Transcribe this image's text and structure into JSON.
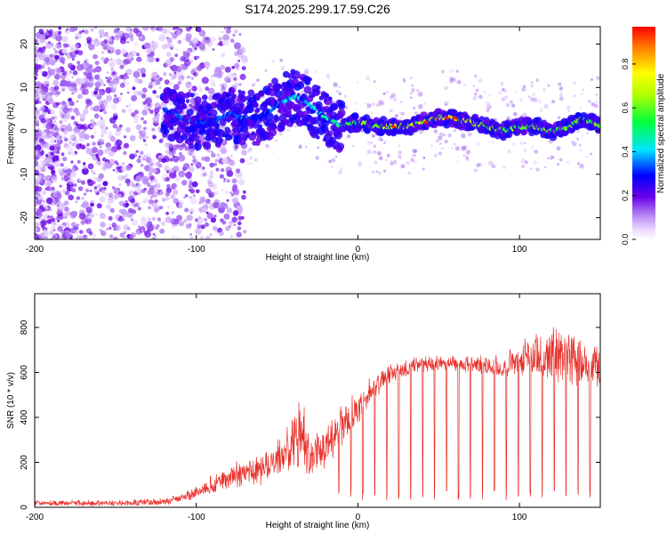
{
  "title": "S174.2025.299.17.59.C26",
  "chart_data": [
    {
      "type": "heatmap",
      "name": "spectrogram",
      "xlabel": "Height of straight line (km)",
      "ylabel": "Frequency (Hz)",
      "xlim": [
        -200,
        150
      ],
      "ylim": [
        -25,
        24
      ],
      "xticks": [
        -200,
        -100,
        0,
        100
      ],
      "yticks": [
        -20,
        -10,
        0,
        10,
        20
      ],
      "colorbar": {
        "label": "Normalized spectral amplitude",
        "range": [
          0,
          0.97
        ],
        "ticks": [
          "0.0",
          "0.2",
          "0.4",
          "0.6",
          "0.8"
        ]
      },
      "ridge": {
        "x": [
          -120,
          -110,
          -100,
          -90,
          -80,
          -70,
          -60,
          -50,
          -40,
          -30,
          -20,
          -10,
          0,
          10,
          20,
          30,
          40,
          50,
          60,
          70,
          80,
          90,
          100,
          110,
          120,
          130,
          140,
          150
        ],
        "freq": [
          5,
          3,
          2,
          2,
          4,
          3,
          3,
          6,
          8,
          6,
          3,
          1,
          2,
          1,
          1,
          1,
          2,
          3,
          3,
          2,
          1,
          0,
          1,
          1,
          0,
          1,
          3,
          1
        ],
        "amplitude": [
          0.3,
          0.35,
          0.35,
          0.3,
          0.35,
          0.35,
          0.3,
          0.35,
          0.4,
          0.4,
          0.45,
          0.55,
          0.6,
          0.62,
          0.65,
          0.66,
          0.7,
          0.72,
          0.75,
          0.68,
          0.6,
          0.58,
          0.62,
          0.64,
          0.6,
          0.62,
          0.62,
          0.6
        ]
      }
    },
    {
      "type": "line",
      "name": "snr",
      "xlabel": "Height of straight line (km)",
      "ylabel": "SNR (10 * v/v)",
      "xlim": [
        -200,
        150
      ],
      "ylim": [
        0,
        950
      ],
      "xticks": [
        -200,
        -100,
        0,
        100
      ],
      "yticks": [
        0,
        200,
        400,
        600,
        800
      ],
      "color": "#e8302a",
      "envelope": {
        "x": [
          -200,
          -150,
          -120,
          -110,
          -100,
          -90,
          -80,
          -70,
          -60,
          -50,
          -40,
          -35,
          -30,
          -20,
          -10,
          0,
          10,
          20,
          30,
          40,
          50,
          60,
          70,
          80,
          90,
          100,
          110,
          120,
          130,
          140,
          150
        ],
        "base": [
          15,
          15,
          20,
          35,
          55,
          90,
          120,
          140,
          150,
          190,
          250,
          280,
          200,
          250,
          340,
          420,
          520,
          580,
          610,
          620,
          630,
          630,
          625,
          620,
          610,
          640,
          650,
          640,
          630,
          620,
          600
        ],
        "spread": [
          20,
          22,
          25,
          35,
          45,
          70,
          90,
          110,
          120,
          120,
          200,
          330,
          150,
          160,
          140,
          110,
          90,
          70,
          60,
          60,
          60,
          60,
          70,
          70,
          80,
          120,
          160,
          200,
          200,
          180,
          180
        ]
      },
      "dip_spacing_km": 7.4,
      "dip_start_km": -12
    }
  ]
}
